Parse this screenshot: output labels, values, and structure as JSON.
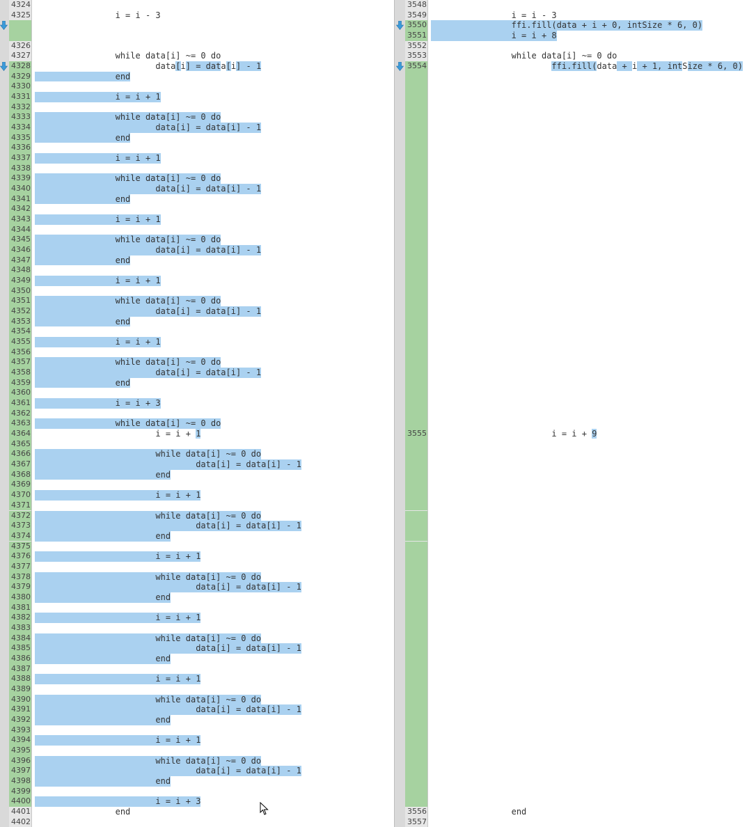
{
  "colors": {
    "selection": "#aad1f0",
    "changed_line_number": "#a6d2a0",
    "gutter": "#d9d9d9",
    "line_number_bg": "#e6e6e6"
  },
  "left": {
    "rows": [
      {
        "n": "4324",
        "t": ""
      },
      {
        "n": "4325",
        "t": "\t\ti = i - 3"
      },
      {
        "n": "",
        "t": "",
        "green": true,
        "arrow": true
      },
      {
        "n": "",
        "t": "",
        "green": true
      },
      {
        "n": "4326",
        "t": ""
      },
      {
        "n": "4327",
        "t": "\t\twhile data[i] ~= 0 do"
      },
      {
        "n": "4328",
        "green": true,
        "arrow": true,
        "segs": [
          [
            "\t\t\tdata",
            0
          ],
          [
            "[",
            1
          ],
          [
            "i",
            0
          ],
          [
            "] = dat",
            1
          ],
          [
            "a",
            0
          ],
          [
            "[",
            1
          ],
          [
            "i",
            0
          ],
          [
            "] - 1",
            1
          ]
        ]
      },
      {
        "n": "4329",
        "t": "\t\tend",
        "hl": true,
        "green": true
      },
      {
        "n": "4330",
        "t": "",
        "green": true
      },
      {
        "n": "4331",
        "t": "\t\ti = i + 1",
        "hl": true,
        "green": true
      },
      {
        "n": "4332",
        "t": "",
        "green": true
      },
      {
        "n": "4333",
        "t": "\t\twhile data[i] ~= 0 do",
        "hl": true,
        "green": true
      },
      {
        "n": "4334",
        "t": "\t\t\tdata[i] = data[i] - 1",
        "hl": true,
        "green": true
      },
      {
        "n": "4335",
        "t": "\t\tend",
        "hl": true,
        "green": true
      },
      {
        "n": "4336",
        "t": "",
        "green": true
      },
      {
        "n": "4337",
        "t": "\t\ti = i + 1",
        "hl": true,
        "green": true
      },
      {
        "n": "4338",
        "t": "",
        "green": true
      },
      {
        "n": "4339",
        "t": "\t\twhile data[i] ~= 0 do",
        "hl": true,
        "green": true
      },
      {
        "n": "4340",
        "t": "\t\t\tdata[i] = data[i] - 1",
        "hl": true,
        "green": true
      },
      {
        "n": "4341",
        "t": "\t\tend",
        "hl": true,
        "green": true
      },
      {
        "n": "4342",
        "t": "",
        "green": true
      },
      {
        "n": "4343",
        "t": "\t\ti = i + 1",
        "hl": true,
        "green": true
      },
      {
        "n": "4344",
        "t": "",
        "green": true
      },
      {
        "n": "4345",
        "t": "\t\twhile data[i] ~= 0 do",
        "hl": true,
        "green": true
      },
      {
        "n": "4346",
        "t": "\t\t\tdata[i] = data[i] - 1",
        "hl": true,
        "green": true
      },
      {
        "n": "4347",
        "t": "\t\tend",
        "hl": true,
        "green": true
      },
      {
        "n": "4348",
        "t": "",
        "green": true
      },
      {
        "n": "4349",
        "t": "\t\ti = i + 1",
        "hl": true,
        "green": true
      },
      {
        "n": "4350",
        "t": "",
        "green": true
      },
      {
        "n": "4351",
        "t": "\t\twhile data[i] ~= 0 do",
        "hl": true,
        "green": true
      },
      {
        "n": "4352",
        "t": "\t\t\tdata[i] = data[i] - 1",
        "hl": true,
        "green": true
      },
      {
        "n": "4353",
        "t": "\t\tend",
        "hl": true,
        "green": true
      },
      {
        "n": "4354",
        "t": "",
        "green": true
      },
      {
        "n": "4355",
        "t": "\t\ti = i + 1",
        "hl": true,
        "green": true
      },
      {
        "n": "4356",
        "t": "",
        "green": true
      },
      {
        "n": "4357",
        "t": "\t\twhile data[i] ~= 0 do",
        "hl": true,
        "green": true
      },
      {
        "n": "4358",
        "t": "\t\t\tdata[i] = data[i] - 1",
        "hl": true,
        "green": true
      },
      {
        "n": "4359",
        "t": "\t\tend",
        "hl": true,
        "green": true
      },
      {
        "n": "4360",
        "t": "",
        "green": true
      },
      {
        "n": "4361",
        "t": "\t\ti = i + 3",
        "hl": true,
        "green": true
      },
      {
        "n": "4362",
        "t": "",
        "green": true
      },
      {
        "n": "4363",
        "t": "\t\twhile data[i] ~= 0 do",
        "hl": true,
        "green": true
      },
      {
        "n": "4364",
        "green": true,
        "segs": [
          [
            "\t\t\ti = i + ",
            0
          ],
          [
            "1",
            1
          ]
        ]
      },
      {
        "n": "4365",
        "t": "",
        "green": true
      },
      {
        "n": "4366",
        "t": "\t\t\twhile data[i] ~= 0 do",
        "hl": true,
        "green": true
      },
      {
        "n": "4367",
        "t": "\t\t\t\tdata[i] = data[i] - 1",
        "hl": true,
        "green": true
      },
      {
        "n": "4368",
        "t": "\t\t\tend",
        "hl": true,
        "green": true
      },
      {
        "n": "4369",
        "t": "",
        "green": true
      },
      {
        "n": "4370",
        "t": "\t\t\ti = i + 1",
        "hl": true,
        "green": true
      },
      {
        "n": "4371",
        "t": "",
        "green": true
      },
      {
        "n": "4372",
        "t": "\t\t\twhile data[i] ~= 0 do",
        "hl": true,
        "green": true
      },
      {
        "n": "4373",
        "t": "\t\t\t\tdata[i] = data[i] - 1",
        "hl": true,
        "green": true
      },
      {
        "n": "4374",
        "t": "\t\t\tend",
        "hl": true,
        "green": true
      },
      {
        "n": "4375",
        "t": "",
        "green": true
      },
      {
        "n": "4376",
        "t": "\t\t\ti = i + 1",
        "hl": true,
        "green": true
      },
      {
        "n": "4377",
        "t": "",
        "green": true
      },
      {
        "n": "4378",
        "t": "\t\t\twhile data[i] ~= 0 do",
        "hl": true,
        "green": true
      },
      {
        "n": "4379",
        "t": "\t\t\t\tdata[i] = data[i] - 1",
        "hl": true,
        "green": true
      },
      {
        "n": "4380",
        "t": "\t\t\tend",
        "hl": true,
        "green": true
      },
      {
        "n": "4381",
        "t": "",
        "green": true
      },
      {
        "n": "4382",
        "t": "\t\t\ti = i + 1",
        "hl": true,
        "green": true
      },
      {
        "n": "4383",
        "t": "",
        "green": true
      },
      {
        "n": "4384",
        "t": "\t\t\twhile data[i] ~= 0 do",
        "hl": true,
        "green": true
      },
      {
        "n": "4385",
        "t": "\t\t\t\tdata[i] = data[i] - 1",
        "hl": true,
        "green": true
      },
      {
        "n": "4386",
        "t": "\t\t\tend",
        "hl": true,
        "green": true
      },
      {
        "n": "4387",
        "t": "",
        "green": true
      },
      {
        "n": "4388",
        "t": "\t\t\ti = i + 1",
        "hl": true,
        "green": true
      },
      {
        "n": "4389",
        "t": "",
        "green": true
      },
      {
        "n": "4390",
        "t": "\t\t\twhile data[i] ~= 0 do",
        "hl": true,
        "green": true
      },
      {
        "n": "4391",
        "t": "\t\t\t\tdata[i] = data[i] - 1",
        "hl": true,
        "green": true
      },
      {
        "n": "4392",
        "t": "\t\t\tend",
        "hl": true,
        "green": true
      },
      {
        "n": "4393",
        "t": "",
        "green": true
      },
      {
        "n": "4394",
        "t": "\t\t\ti = i + 1",
        "hl": true,
        "green": true
      },
      {
        "n": "4395",
        "t": "",
        "green": true
      },
      {
        "n": "4396",
        "t": "\t\t\twhile data[i] ~= 0 do",
        "hl": true,
        "green": true
      },
      {
        "n": "4397",
        "t": "\t\t\t\tdata[i] = data[i] - 1",
        "hl": true,
        "green": true
      },
      {
        "n": "4398",
        "t": "\t\t\tend",
        "hl": true,
        "green": true
      },
      {
        "n": "4399",
        "t": "",
        "green": true
      },
      {
        "n": "4400",
        "t": "\t\t\ti = i + 3",
        "hl": true,
        "green": true
      },
      {
        "n": "4401",
        "t": "\t\tend"
      },
      {
        "n": "4402",
        "t": ""
      }
    ]
  },
  "right": {
    "rows": [
      {
        "n": "3548",
        "t": ""
      },
      {
        "n": "3549",
        "t": "\t\ti = i - 3"
      },
      {
        "n": "3550",
        "t": "\t\tffi.fill(data + i + 0, intSize * 6, 0)",
        "hl": true,
        "green": true,
        "arrow": true
      },
      {
        "n": "3551",
        "t": "\t\ti = i + 8",
        "hl": true,
        "green": true
      },
      {
        "n": "3552",
        "t": ""
      },
      {
        "n": "3553",
        "t": "\t\twhile data[i] ~= 0 do"
      },
      {
        "n": "3554",
        "green": true,
        "arrow": true,
        "segs": [
          [
            "\t\t\t",
            0
          ],
          [
            "ffi.fill(",
            1
          ],
          [
            "data",
            0
          ],
          [
            " + ",
            1
          ],
          [
            "i",
            0
          ],
          [
            " + 1, int",
            1
          ],
          [
            "S",
            0
          ],
          [
            "ize * 6, 0)",
            1
          ]
        ]
      },
      {
        "filler": 35
      },
      {
        "n": "3555",
        "green": true,
        "segs": [
          [
            "\t\t\ti = i + ",
            0
          ],
          [
            "9",
            1
          ]
        ]
      },
      {
        "filler": 36
      },
      {
        "n": "3556",
        "t": "\t\tend"
      },
      {
        "n": "3557",
        "t": ""
      }
    ]
  }
}
